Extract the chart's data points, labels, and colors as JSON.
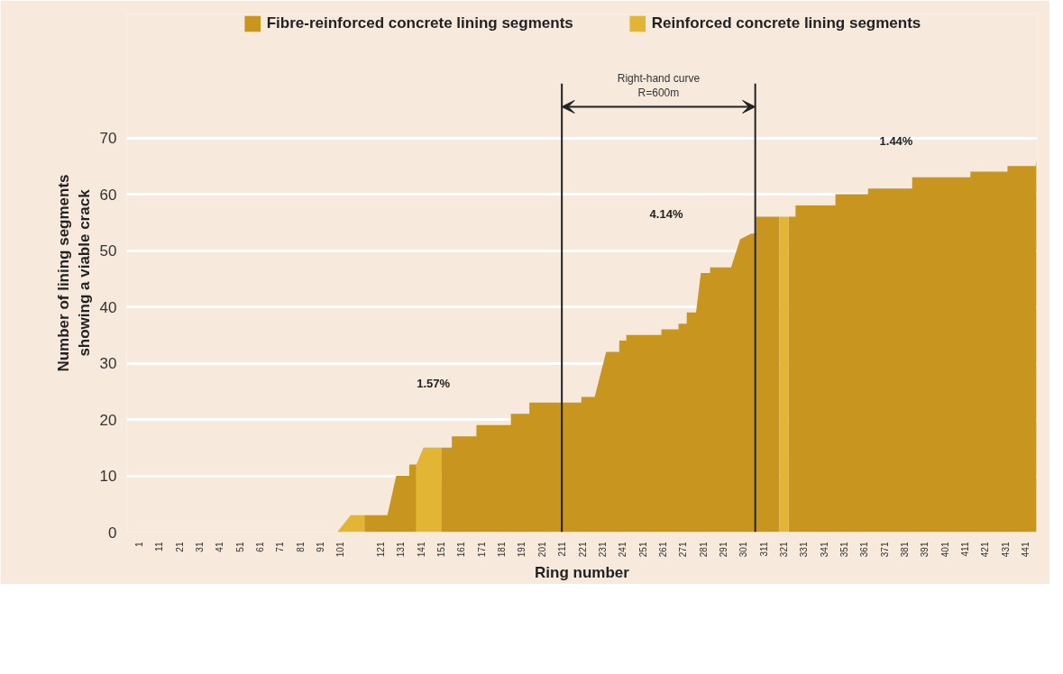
{
  "chart_data": {
    "type": "area",
    "xlabel": "Ring number",
    "ylabel": "Number of lining segments\nshowing a viable crack",
    "xlim": [
      -5,
      447
    ],
    "ylim": [
      0,
      92
    ],
    "xticks": [
      1,
      11,
      21,
      31,
      41,
      51,
      61,
      71,
      81,
      91,
      101,
      121,
      131,
      141,
      151,
      161,
      171,
      181,
      191,
      201,
      211,
      221,
      231,
      241,
      251,
      261,
      271,
      281,
      291,
      301,
      311,
      321,
      331,
      341,
      351,
      361,
      371,
      381,
      391,
      401,
      411,
      421,
      431,
      441
    ],
    "yticks": [
      0,
      10,
      20,
      30,
      40,
      50,
      60,
      70
    ],
    "grid": "y",
    "legend": "top",
    "series": [
      {
        "name": "Fibre-reinforced concrete lining segments",
        "color": "#c8961e",
        "x": [
          113,
          124.4,
          128.8,
          135.3,
          135.3,
          138.8,
          null,
          151.1,
          156.4,
          156.4,
          168.6,
          168.6,
          185.7,
          185.7,
          194.9,
          194.9,
          220.7,
          220.7,
          227.3,
          233,
          239.5,
          239.5,
          243,
          243,
          260.4,
          260.4,
          268.9,
          268.9,
          273,
          273,
          277.6,
          280,
          284.6,
          284.6,
          295,
          299.5,
          305,
          307.4,
          307.4,
          319,
          null,
          323.6,
          327,
          327,
          346.8,
          346.8,
          363,
          363,
          384.9,
          384.9,
          413.8,
          413.8,
          432.2,
          432.2,
          446.2,
          446.5
        ],
        "values": [
          3,
          3,
          10,
          10,
          12,
          12,
          null,
          15,
          15,
          17,
          17,
          19,
          19,
          21,
          21,
          23,
          23,
          24,
          24,
          32,
          32,
          34,
          34,
          35,
          35,
          36,
          36,
          37,
          37,
          39,
          39,
          46,
          46,
          47,
          47,
          52,
          53,
          53,
          56,
          56,
          null,
          56,
          56,
          58,
          58,
          60,
          60,
          61,
          61,
          63,
          63,
          64,
          64,
          65,
          65,
          66
        ]
      },
      {
        "name": "Reinforced concrete lining segments",
        "color": "#e2b535",
        "x": [
          99.5,
          106.2,
          113,
          null,
          138.8,
          142.3,
          151.1,
          null,
          319,
          323.6
        ],
        "values": [
          0,
          3,
          3,
          null,
          12,
          15,
          15,
          null,
          56,
          56
        ]
      }
    ],
    "ref_lines": [
      {
        "axis": "x",
        "value": 211,
        "color": "#222222"
      },
      {
        "axis": "x",
        "value": 307,
        "color": "#222222"
      }
    ],
    "annotations": [
      "Right-hand curve\nR=600m",
      "1.57%",
      "4.14%",
      "1.44%"
    ]
  }
}
